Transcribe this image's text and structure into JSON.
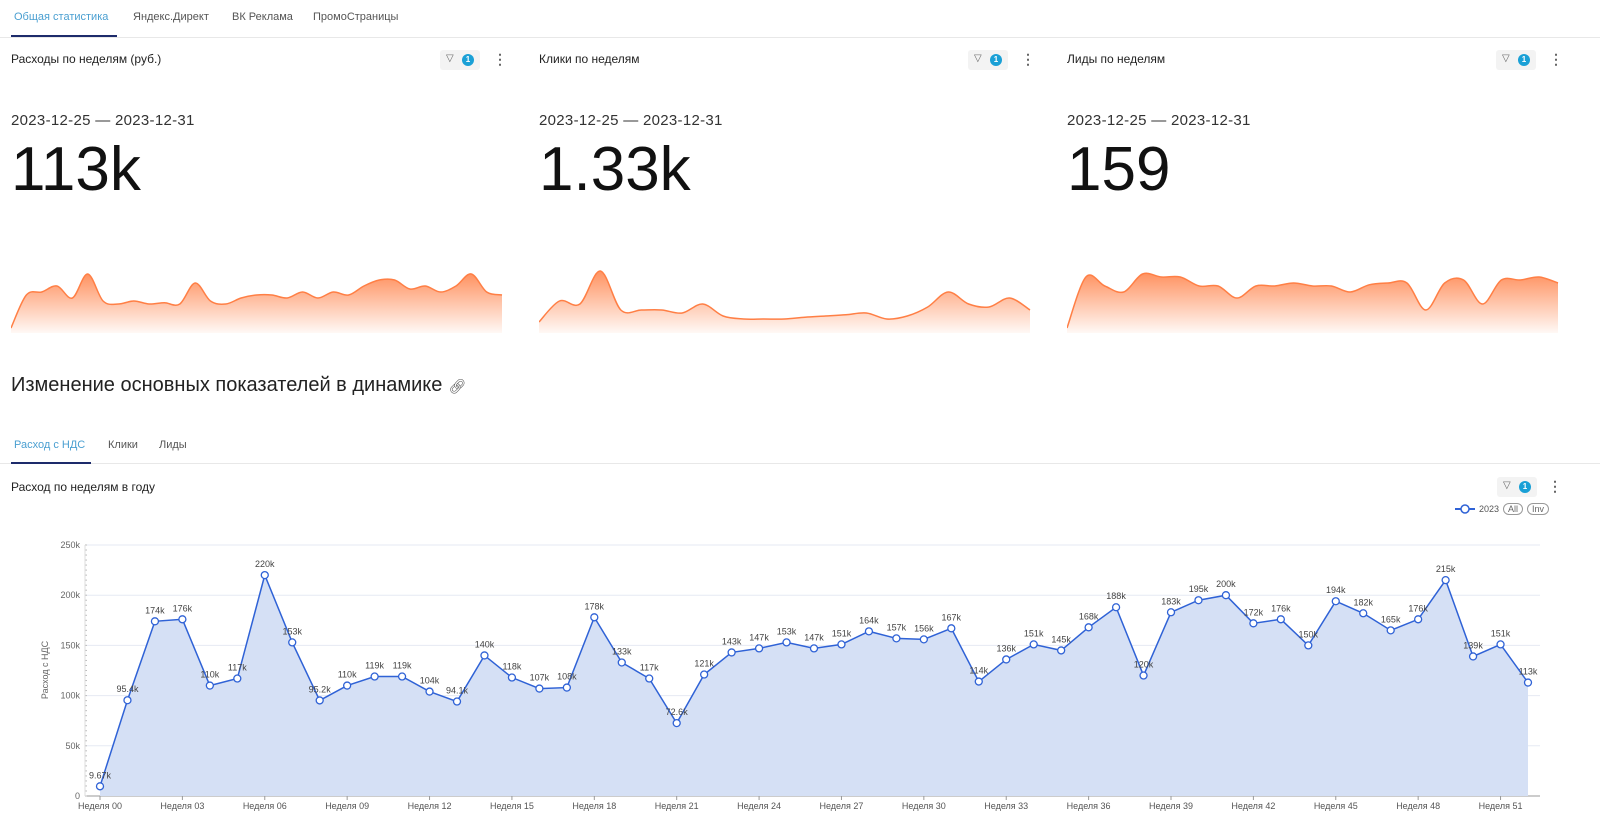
{
  "tabs": [
    "Общая статистика",
    "Яндекс.Директ",
    "ВК Реклама",
    "ПромоСтраницы"
  ],
  "cards": [
    {
      "title": "Расходы по неделям (руб.)",
      "filter_count": "1",
      "date": "2023-12-25 — 2023-12-31",
      "value": "113k",
      "sparkline": [
        0.0,
        0.55,
        0.6,
        0.7,
        0.5,
        0.9,
        0.45,
        0.4,
        0.45,
        0.4,
        0.42,
        0.4,
        0.75,
        0.45,
        0.4,
        0.5,
        0.55,
        0.55,
        0.5,
        0.6,
        0.5,
        0.6,
        0.55,
        0.7,
        0.8,
        0.8,
        0.65,
        0.7,
        0.6,
        0.7,
        0.9,
        0.6,
        0.55
      ]
    },
    {
      "title": "Клики по неделям",
      "filter_count": "1",
      "date": "2023-12-25 — 2023-12-31",
      "value": "1.33k",
      "sparkline": [
        0.1,
        0.45,
        0.4,
        0.95,
        0.3,
        0.3,
        0.3,
        0.25,
        0.4,
        0.2,
        0.15,
        0.15,
        0.15,
        0.18,
        0.2,
        0.22,
        0.25,
        0.15,
        0.2,
        0.35,
        0.6,
        0.4,
        0.35,
        0.5,
        0.3
      ]
    },
    {
      "title": "Лиды по неделям",
      "filter_count": "1",
      "date": "2023-12-25 — 2023-12-31",
      "value": "159",
      "sparkline": [
        0.0,
        0.85,
        0.7,
        0.6,
        0.9,
        0.85,
        0.85,
        0.7,
        0.7,
        0.5,
        0.7,
        0.7,
        0.75,
        0.7,
        0.7,
        0.6,
        0.72,
        0.75,
        0.75,
        0.3,
        0.75,
        0.8,
        0.4,
        0.8,
        0.8,
        0.85,
        0.75
      ]
    }
  ],
  "section": {
    "title": "Изменение основных показателей в динамике",
    "link_icon": "link-icon"
  },
  "subtabs": [
    "Расход с НДС",
    "Клики",
    "Лиды"
  ],
  "chart_card": {
    "title": "Расход по неделям в году",
    "filter_count": "1",
    "legend": "2023",
    "btn_all": "All",
    "btn_inv": "Inv"
  },
  "colors": {
    "accent": "#4a9fd1",
    "badge": "#1aa0d6",
    "spark": "#ff7f45",
    "line": "#2f62d6",
    "area": "#d5e0f5"
  },
  "chart_data": {
    "type": "area",
    "title": "Расход по неделям в году",
    "ylabel": "Расход с НДС",
    "ylim": [
      0,
      250000
    ],
    "yticks": [
      "0",
      "50k",
      "100k",
      "150k",
      "200k",
      "250k"
    ],
    "xtick_labels": [
      "Неделя 00",
      "Неделя 03",
      "Неделя 06",
      "Неделя 09",
      "Неделя 12",
      "Неделя 15",
      "Неделя 18",
      "Неделя 21",
      "Неделя 24",
      "Неделя 27",
      "Неделя 30",
      "Неделя 33",
      "Неделя 36",
      "Неделя 39",
      "Неделя 42",
      "Неделя 45",
      "Неделя 48",
      "Неделя 51"
    ],
    "series": [
      {
        "name": "2023",
        "values": [
          9670,
          95400,
          174000,
          176000,
          110000,
          117000,
          220000,
          153000,
          95200,
          110000,
          119000,
          119000,
          104000,
          94100,
          140000,
          118000,
          107000,
          108000,
          178000,
          133000,
          117000,
          72600,
          121000,
          143000,
          147000,
          153000,
          147000,
          151000,
          164000,
          157000,
          156000,
          167000,
          114000,
          136000,
          151000,
          145000,
          168000,
          188000,
          120000,
          183000,
          195000,
          200000,
          172000,
          176000,
          150000,
          194000,
          182000,
          165000,
          176000,
          215000,
          139000,
          151000,
          113000
        ],
        "labels": [
          "9.67k",
          "95.4k",
          "174k",
          "176k",
          "110k",
          "117k",
          "220k",
          "153k",
          "95.2k",
          "110k",
          "119k",
          "119k",
          "104k",
          "94.1k",
          "140k",
          "118k",
          "107k",
          "108k",
          "178k",
          "133k",
          "117k",
          "72.6k",
          "121k",
          "143k",
          "147k",
          "153k",
          "147k",
          "151k",
          "164k",
          "157k",
          "156k",
          "167k",
          "114k",
          "136k",
          "151k",
          "145k",
          "168k",
          "188k",
          "120k",
          "183k",
          "195k",
          "200k",
          "172k",
          "176k",
          "150k",
          "194k",
          "182k",
          "165k",
          "176k",
          "215k",
          "139k",
          "151k",
          "113k"
        ]
      }
    ]
  }
}
